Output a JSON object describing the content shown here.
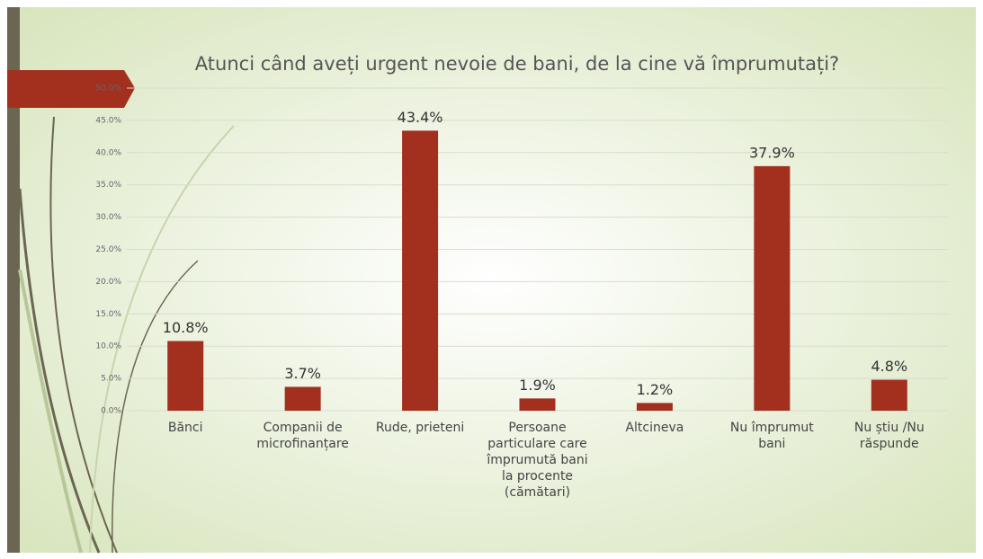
{
  "chart_data": {
    "type": "bar",
    "title": "Atunci când aveți urgent nevoie de bani, de la cine vă împrumutați?",
    "categories": [
      "Bănci",
      "Companii de microfinanțare",
      "Rude, prieteni",
      "Persoane particulare care împrumută bani la procente (cămătari)",
      "Altcineva",
      "Nu împrumut bani",
      "Nu știu /Nu răspunde"
    ],
    "values": [
      10.8,
      3.7,
      43.4,
      1.9,
      1.2,
      37.9,
      4.8
    ],
    "value_labels": [
      "10.8%",
      "3.7%",
      "43.4%",
      "1.9%",
      "1.2%",
      "37.9%",
      "4.8%"
    ],
    "color": "#a3301f",
    "ylim": [
      0,
      50
    ],
    "yticks": [
      {
        "value": 0,
        "label": "0.0%"
      },
      {
        "value": 5,
        "label": "5.0%"
      },
      {
        "value": 10,
        "label": "10.0%"
      },
      {
        "value": 15,
        "label": "15.0%"
      },
      {
        "value": 20,
        "label": "20.0%"
      },
      {
        "value": 25,
        "label": "25.0%"
      },
      {
        "value": 30,
        "label": "30.0%"
      },
      {
        "value": 35,
        "label": "35.0%"
      },
      {
        "value": 40,
        "label": "40.0%"
      },
      {
        "value": 45,
        "label": "45.0%"
      },
      {
        "value": 50,
        "label": "50.0%"
      }
    ],
    "grid": true
  }
}
